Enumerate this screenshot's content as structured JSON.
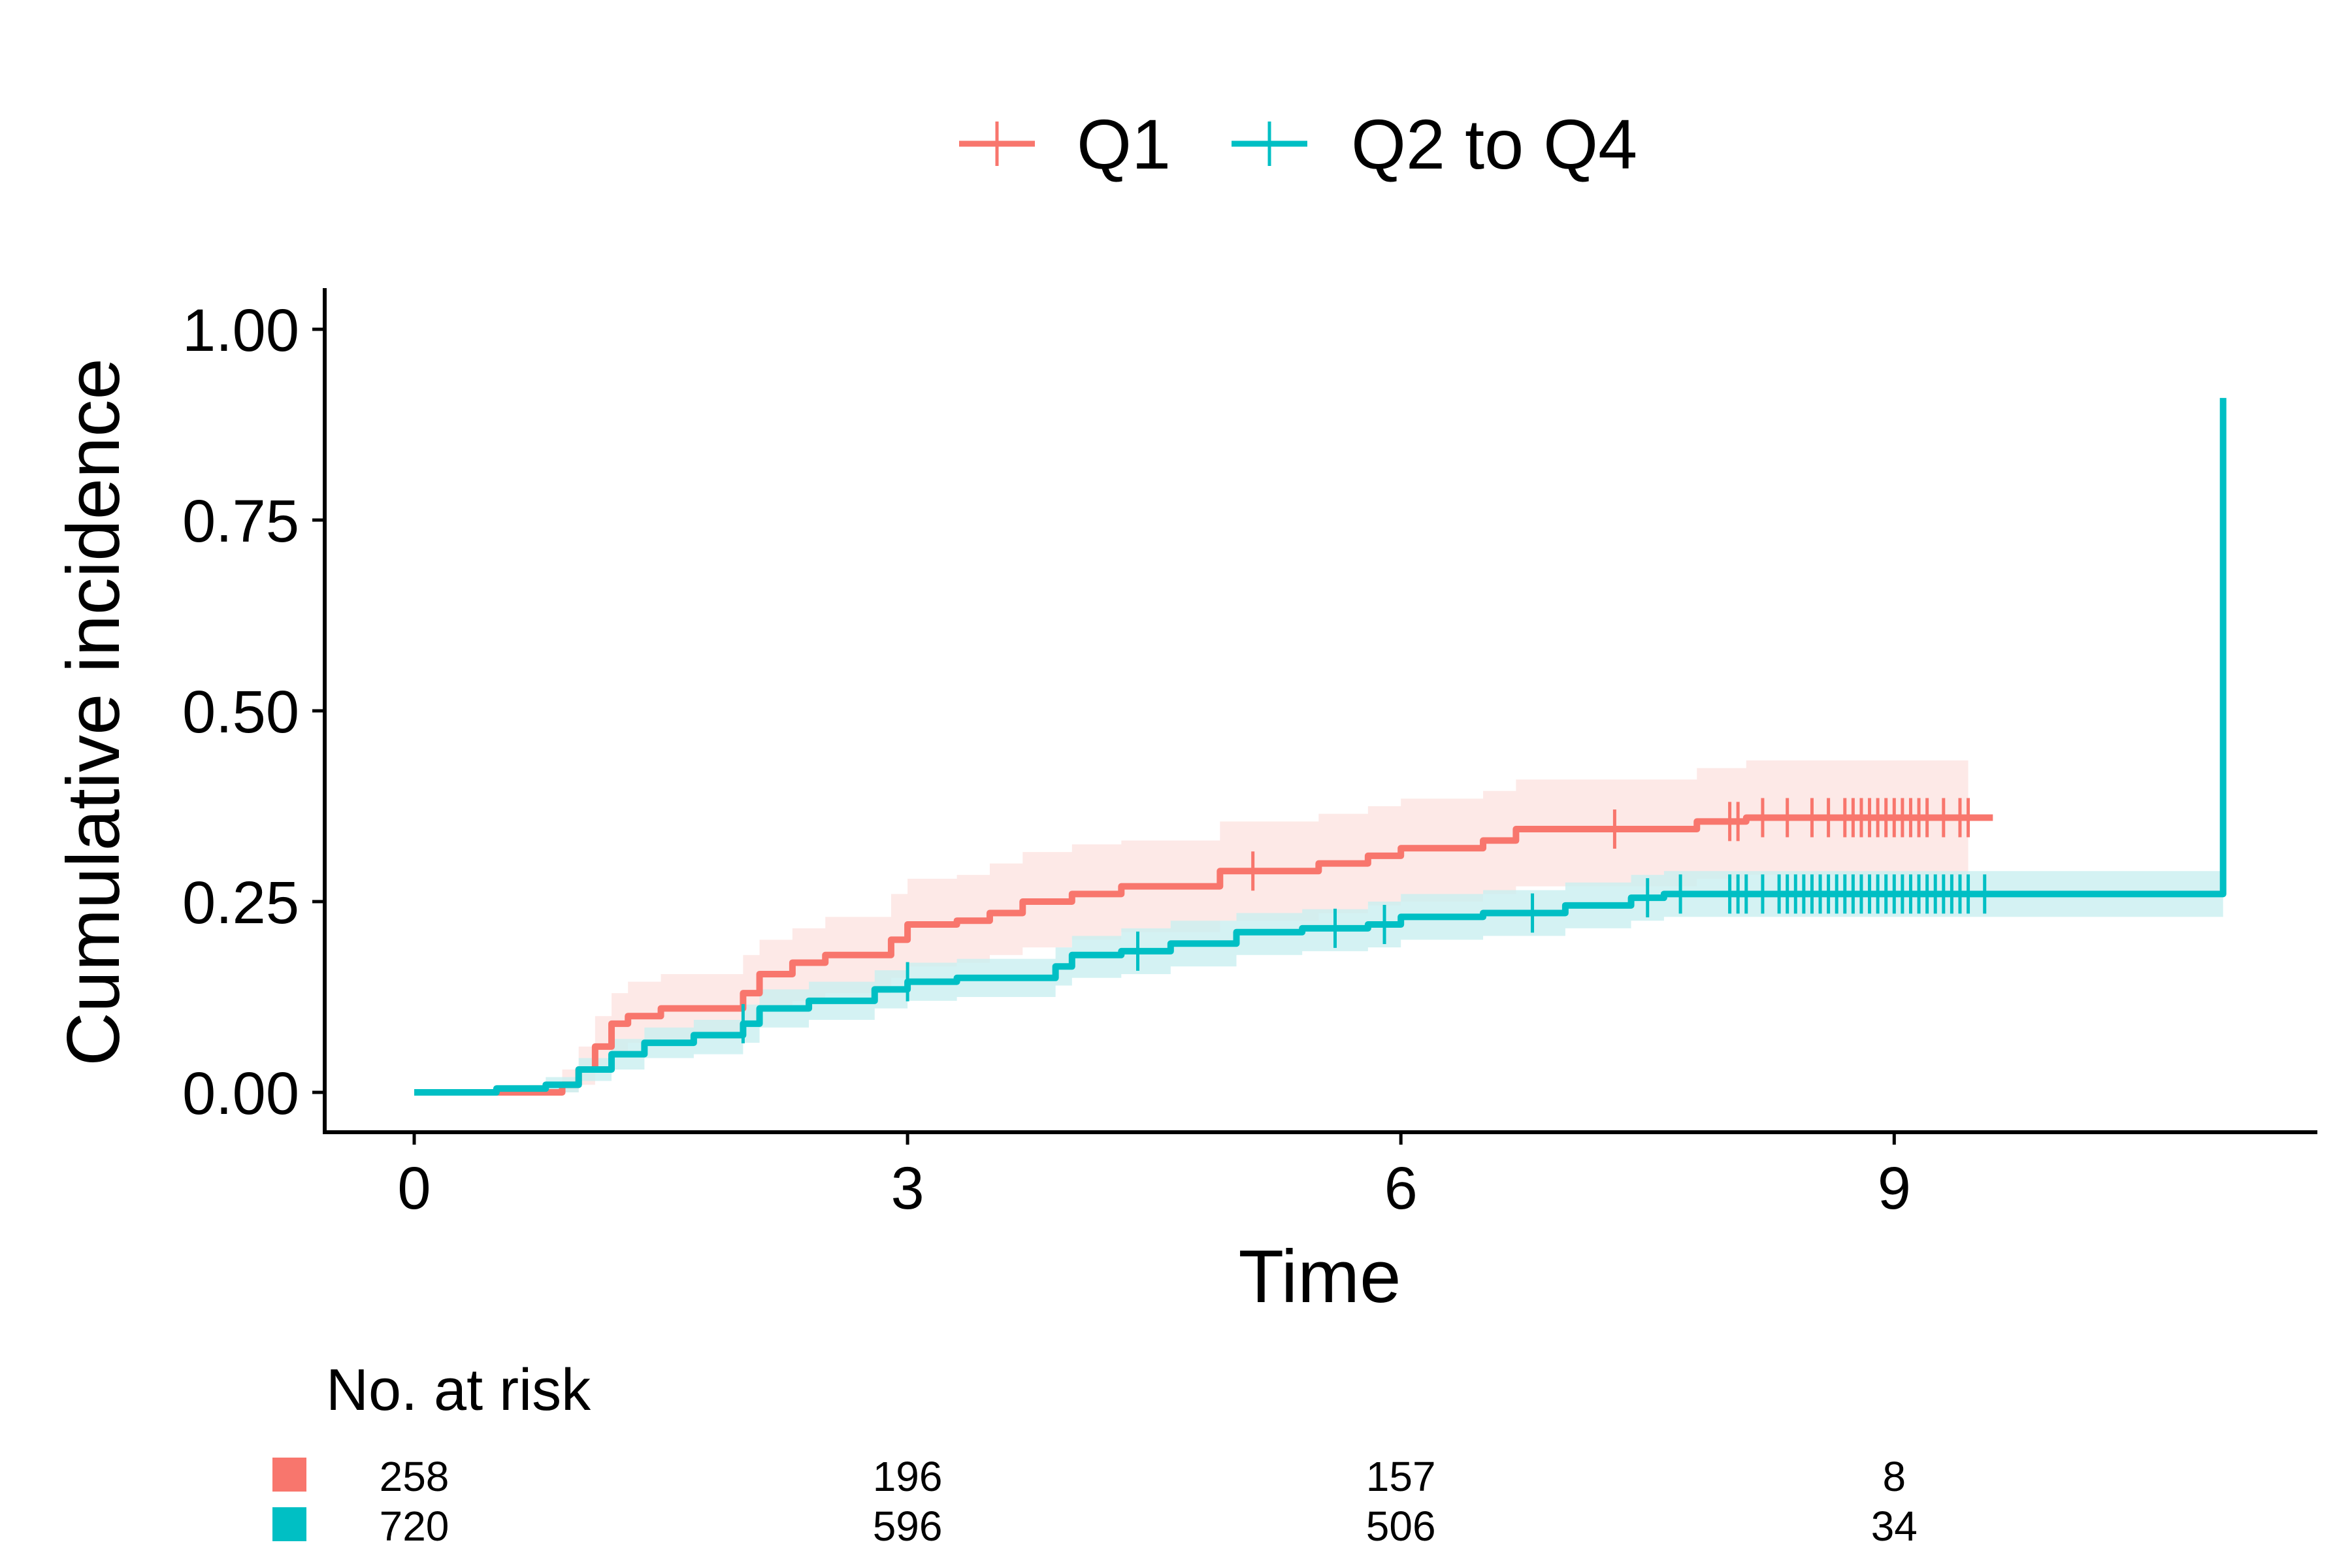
{
  "chart_data": {
    "type": "line",
    "subtype": "cumulative-incidence-step",
    "xlabel": "Time",
    "ylabel": "Cumulative incidence",
    "xlim": [
      -0.55,
      11.6
    ],
    "ylim": [
      -0.05,
      1.05
    ],
    "xticks": [
      0,
      3,
      6,
      9
    ],
    "yticks": [
      0,
      0.25,
      0.5,
      0.75,
      1.0
    ],
    "ytick_labels": [
      "0.00",
      "0.25",
      "0.50",
      "0.75",
      "1.00"
    ],
    "grid": false,
    "legend_position": "top",
    "series": [
      {
        "name": "Q1",
        "color": "#F8766D",
        "band_color": "#FDE3E1",
        "x": [
          0,
          0.7,
          0.9,
          1.0,
          1.1,
          1.2,
          1.3,
          1.5,
          2.0,
          2.1,
          2.3,
          2.5,
          2.9,
          3.0,
          3.3,
          3.5,
          3.7,
          4.0,
          4.3,
          4.9,
          5.5,
          5.8,
          6.0,
          6.5,
          6.7,
          7.8,
          8.1,
          9.6
        ],
        "y": [
          0,
          0.0,
          0.01,
          0.03,
          0.06,
          0.09,
          0.1,
          0.11,
          0.13,
          0.155,
          0.17,
          0.18,
          0.2,
          0.22,
          0.225,
          0.235,
          0.25,
          0.26,
          0.27,
          0.29,
          0.3,
          0.31,
          0.32,
          0.33,
          0.345,
          0.355,
          0.36,
          0.36
        ],
        "lower": [
          0,
          0.0,
          0.0,
          0.01,
          0.03,
          0.05,
          0.065,
          0.07,
          0.09,
          0.11,
          0.12,
          0.13,
          0.15,
          0.165,
          0.17,
          0.18,
          0.19,
          0.2,
          0.21,
          0.225,
          0.235,
          0.245,
          0.25,
          0.26,
          0.27,
          0.28,
          0.285,
          0.285
        ],
        "upper": [
          0,
          0.01,
          0.03,
          0.06,
          0.1,
          0.13,
          0.145,
          0.155,
          0.18,
          0.2,
          0.215,
          0.23,
          0.26,
          0.28,
          0.285,
          0.3,
          0.315,
          0.325,
          0.33,
          0.355,
          0.365,
          0.375,
          0.385,
          0.395,
          0.41,
          0.425,
          0.435,
          0.435
        ],
        "band_end": 9.45,
        "censored": [
          5.1,
          7.3,
          8.0,
          8.05,
          8.2,
          8.35,
          8.5,
          8.6,
          8.7,
          8.75,
          8.8,
          8.85,
          8.9,
          8.95,
          9.0,
          9.05,
          9.1,
          9.15,
          9.2,
          9.3,
          9.4,
          9.45
        ]
      },
      {
        "name": "Q2 to Q4",
        "color": "#00BFC4",
        "band_color": "#C9EFF0",
        "x": [
          0,
          0.5,
          0.8,
          1.0,
          1.2,
          1.4,
          1.7,
          2.0,
          2.1,
          2.4,
          2.8,
          3.0,
          3.3,
          3.9,
          4.0,
          4.3,
          4.6,
          5.0,
          5.4,
          5.8,
          6.0,
          6.5,
          7.0,
          7.4,
          7.6,
          11.0
        ],
        "y": [
          0,
          0.005,
          0.01,
          0.03,
          0.05,
          0.065,
          0.075,
          0.09,
          0.11,
          0.12,
          0.135,
          0.145,
          0.15,
          0.165,
          0.18,
          0.185,
          0.195,
          0.21,
          0.215,
          0.22,
          0.23,
          0.235,
          0.245,
          0.255,
          0.26,
          0.26
        ],
        "lower": [
          0,
          0.0,
          0.0,
          0.015,
          0.03,
          0.045,
          0.05,
          0.065,
          0.085,
          0.095,
          0.11,
          0.12,
          0.125,
          0.14,
          0.15,
          0.155,
          0.165,
          0.18,
          0.185,
          0.19,
          0.2,
          0.205,
          0.215,
          0.225,
          0.23,
          0.23
        ],
        "upper": [
          0,
          0.01,
          0.02,
          0.045,
          0.07,
          0.085,
          0.095,
          0.115,
          0.135,
          0.145,
          0.16,
          0.17,
          0.175,
          0.19,
          0.205,
          0.215,
          0.225,
          0.235,
          0.24,
          0.25,
          0.26,
          0.265,
          0.275,
          0.285,
          0.29,
          0.29
        ],
        "band_end": 11.0,
        "final_jump": 0.91,
        "censored": [
          2.0,
          3.0,
          4.4,
          5.6,
          5.9,
          6.8,
          7.5,
          7.7,
          8.0,
          8.05,
          8.1,
          8.2,
          8.3,
          8.35,
          8.4,
          8.45,
          8.5,
          8.55,
          8.6,
          8.65,
          8.7,
          8.75,
          8.8,
          8.85,
          8.9,
          8.95,
          9.0,
          9.05,
          9.1,
          9.15,
          9.2,
          9.25,
          9.3,
          9.35,
          9.4,
          9.45,
          9.55
        ]
      }
    ],
    "risk_table": {
      "title": "No. at risk",
      "times": [
        0,
        3,
        6,
        9
      ],
      "rows": [
        {
          "name": "Q1",
          "color": "#F8766D",
          "values": [
            "258",
            "196",
            "157",
            "8"
          ]
        },
        {
          "name": "Q2 to Q4",
          "color": "#00BFC4",
          "values": [
            "720",
            "596",
            "506",
            "34"
          ]
        }
      ]
    }
  }
}
